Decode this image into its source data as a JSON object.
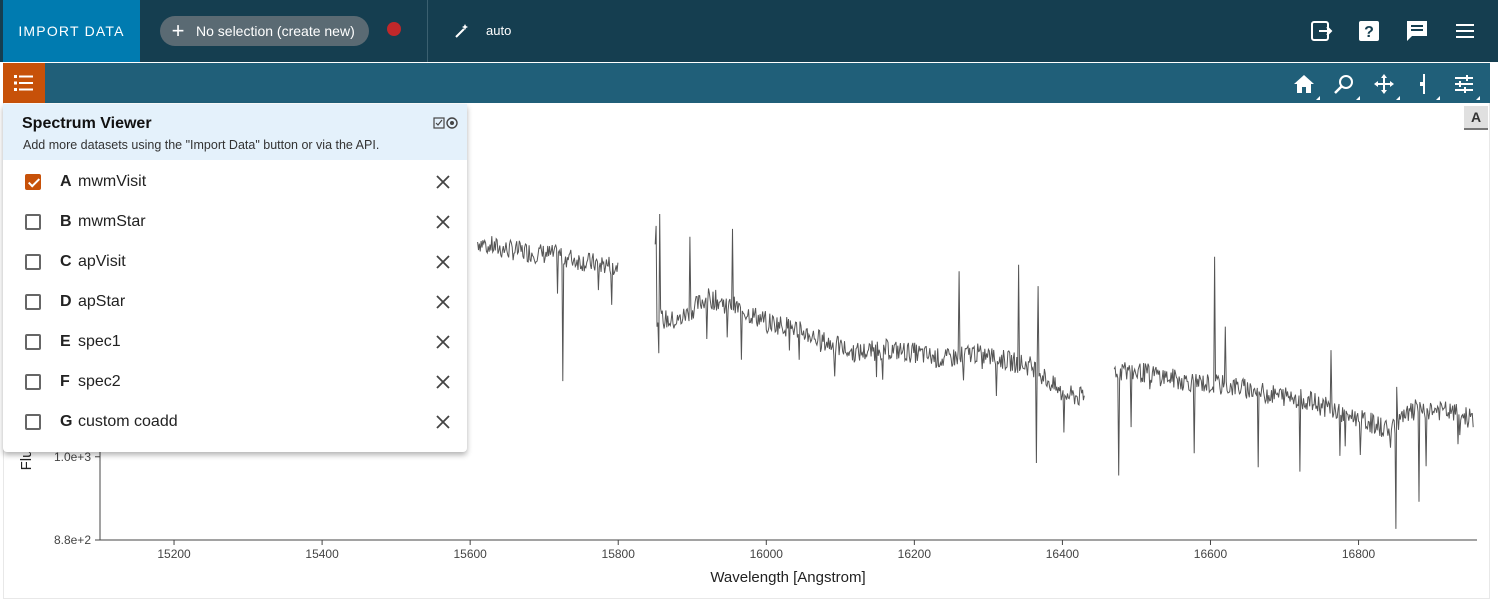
{
  "header": {
    "import_label": "IMPORT DATA",
    "selection_label": "No selection (create new)",
    "auto_label": "auto"
  },
  "icons": {
    "top_right": [
      "export-icon",
      "help-icon",
      "chat-icon",
      "menu-icon"
    ],
    "toolbar": [
      "home-icon",
      "zoom-icon",
      "pan-icon",
      "slice-icon",
      "settings-sliders-icon"
    ]
  },
  "viewer": {
    "badge": "A",
    "layers": {
      "title": "Spectrum Viewer",
      "subtitle": "Add more datasets using the \"Import Data\" button or via the API.",
      "items": [
        {
          "letter": "A",
          "name": "mwmVisit",
          "checked": true
        },
        {
          "letter": "B",
          "name": "mwmStar",
          "checked": false
        },
        {
          "letter": "C",
          "name": "apVisit",
          "checked": false
        },
        {
          "letter": "D",
          "name": "apStar",
          "checked": false
        },
        {
          "letter": "E",
          "name": "spec1",
          "checked": false
        },
        {
          "letter": "F",
          "name": "spec2",
          "checked": false
        },
        {
          "letter": "G",
          "name": "custom coadd",
          "checked": false
        }
      ]
    }
  },
  "colors": {
    "topbar": "#153e50",
    "import": "#007bb0",
    "subbar": "#205f79",
    "accent": "#c75109",
    "spectrum": "#555555"
  },
  "chart_data": {
    "type": "line",
    "xlabel": "Wavelength [Angstrom]",
    "ylabel": "Flu",
    "xlim": [
      15100,
      16960
    ],
    "x_ticks": [
      15200,
      15400,
      15600,
      15800,
      16000,
      16200,
      16400,
      16600,
      16800
    ],
    "x_tick_labels": [
      "15200",
      "15400",
      "15600",
      "15800",
      "16000",
      "16200",
      "16400",
      "16600",
      "16800"
    ],
    "y_ticks": [
      880,
      1000
    ],
    "y_tick_labels": [
      "8.8e+2",
      "1.0e+3"
    ],
    "ylim": [
      880,
      1500
    ],
    "series": [
      {
        "segments": [
          {
            "x": [
              15610,
              15640,
              15680,
              15720,
              15760,
              15800
            ],
            "y": [
              1310,
              1300,
              1295,
              1290,
              1280,
              1275
            ]
          },
          {
            "x": [
              15850,
              15880,
              15920,
              15960,
              16000,
              16040,
              16080,
              16120,
              16160,
              16200,
              16240,
              16280,
              16320,
              16360,
              16400,
              16430
            ],
            "y": [
              1200,
              1195,
              1230,
              1215,
              1195,
              1185,
              1165,
              1150,
              1155,
              1150,
              1140,
              1150,
              1140,
              1130,
              1090,
              1085
            ]
          },
          {
            "x": [
              16470,
              16520,
              16560,
              16600,
              16640,
              16680,
              16720,
              16760,
              16800,
              16840,
              16880,
              16920,
              16955
            ],
            "y": [
              1125,
              1120,
              1110,
              1105,
              1100,
              1090,
              1085,
              1070,
              1055,
              1040,
              1070,
              1065,
              1055
            ]
          }
        ]
      }
    ]
  }
}
